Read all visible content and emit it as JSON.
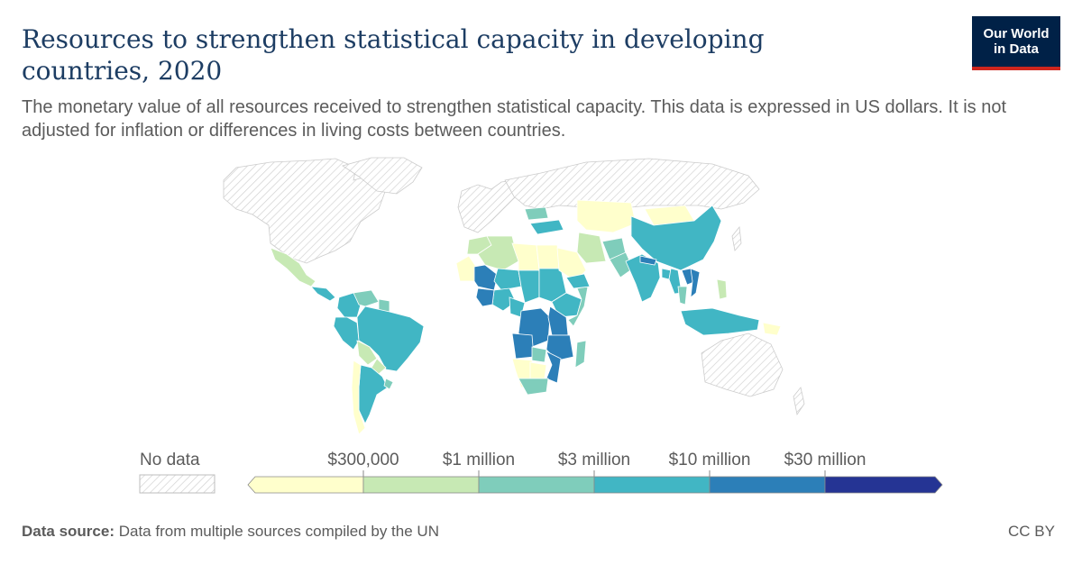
{
  "header": {
    "title": "Resources to strengthen statistical capacity in developing countries, 2020",
    "subtitle": "The monetary value of all resources received to strengthen statistical capacity. This data is expressed in US dollars. It is not adjusted for inflation or differences in living costs between countries."
  },
  "logo": {
    "line1": "Our World",
    "line2": "in Data",
    "bg_color": "#002147",
    "accent_color": "#ce261e"
  },
  "legend": {
    "no_data_label": "No data",
    "thresholds": [
      "$300,000",
      "$1 million",
      "$3 million",
      "$10 million",
      "$30 million"
    ],
    "colors": [
      "#ffffcc",
      "#c7e9b4",
      "#7fcdbb",
      "#41b6c4",
      "#2c7fb8",
      "#253494"
    ],
    "no_data_pattern": "hatched-grey"
  },
  "map_regions": [
    {
      "name": "Mexico",
      "bin": 1
    },
    {
      "name": "Central America",
      "bin": 3
    },
    {
      "name": "Colombia",
      "bin": 3
    },
    {
      "name": "Venezuela",
      "bin": 2
    },
    {
      "name": "Guyana",
      "bin": 2
    },
    {
      "name": "Peru",
      "bin": 3
    },
    {
      "name": "Brazil",
      "bin": 3
    },
    {
      "name": "Bolivia",
      "bin": 1
    },
    {
      "name": "Paraguay",
      "bin": 1
    },
    {
      "name": "Argentina",
      "bin": 3
    },
    {
      "name": "Chile",
      "bin": 0
    },
    {
      "name": "Uruguay",
      "bin": 2
    },
    {
      "name": "Morocco",
      "bin": 1
    },
    {
      "name": "Algeria",
      "bin": 1
    },
    {
      "name": "Libya",
      "bin": 0
    },
    {
      "name": "Egypt",
      "bin": 0
    },
    {
      "name": "Mauritania",
      "bin": 0
    },
    {
      "name": "Mali",
      "bin": 4
    },
    {
      "name": "Niger",
      "bin": 3
    },
    {
      "name": "Chad",
      "bin": 3
    },
    {
      "name": "Sudan",
      "bin": 3
    },
    {
      "name": "Ethiopia",
      "bin": 3
    },
    {
      "name": "Somalia",
      "bin": 2
    },
    {
      "name": "Nigeria",
      "bin": 3
    },
    {
      "name": "Ghana",
      "bin": 4
    },
    {
      "name": "Cameroon",
      "bin": 3
    },
    {
      "name": "DR Congo",
      "bin": 4
    },
    {
      "name": "Kenya",
      "bin": 4
    },
    {
      "name": "Tanzania",
      "bin": 4
    },
    {
      "name": "Angola",
      "bin": 4
    },
    {
      "name": "Zambia",
      "bin": 2
    },
    {
      "name": "Mozambique",
      "bin": 4
    },
    {
      "name": "Namibia",
      "bin": 0
    },
    {
      "name": "Botswana",
      "bin": 0
    },
    {
      "name": "South Africa",
      "bin": 2
    },
    {
      "name": "Madagascar",
      "bin": 2
    },
    {
      "name": "Turkey",
      "bin": 3
    },
    {
      "name": "Iran",
      "bin": 1
    },
    {
      "name": "Saudi Arabia",
      "bin": 0
    },
    {
      "name": "Yemen",
      "bin": 3
    },
    {
      "name": "Kazakhstan",
      "bin": 0
    },
    {
      "name": "Mongolia",
      "bin": 0
    },
    {
      "name": "China",
      "bin": 3
    },
    {
      "name": "Afghanistan",
      "bin": 2
    },
    {
      "name": "Pakistan",
      "bin": 2
    },
    {
      "name": "India",
      "bin": 3
    },
    {
      "name": "Nepal",
      "bin": 4
    },
    {
      "name": "Bangladesh",
      "bin": 3
    },
    {
      "name": "Myanmar",
      "bin": 3
    },
    {
      "name": "Thailand",
      "bin": 2
    },
    {
      "name": "Vietnam",
      "bin": 4
    },
    {
      "name": "Laos",
      "bin": 4
    },
    {
      "name": "Philippines",
      "bin": 1
    },
    {
      "name": "Indonesia",
      "bin": 3
    },
    {
      "name": "Papua New Guinea",
      "bin": 0
    },
    {
      "name": "Ukraine",
      "bin": 2
    }
  ],
  "footer": {
    "source_label": "Data source:",
    "source_text": "Data from multiple sources compiled by the UN",
    "license": "CC BY"
  }
}
